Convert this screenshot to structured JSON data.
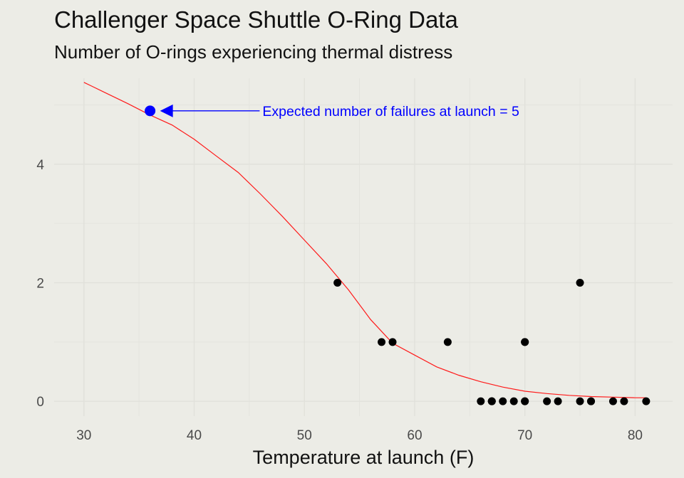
{
  "chart_data": {
    "type": "scatter",
    "title": "Challenger Space Shuttle O-Ring Data",
    "subtitle": "Number of O-rings experiencing thermal distress",
    "xlabel": "Temperature at launch (F)",
    "ylabel": "",
    "xlim": [
      27.3,
      83.4
    ],
    "ylim": [
      -0.25,
      5.45
    ],
    "x_ticks": [
      "30",
      "40",
      "50",
      "60",
      "70",
      "80"
    ],
    "y_ticks": [
      "0",
      "2",
      "4"
    ],
    "grid": true,
    "series": [
      {
        "type": "scatter",
        "x": [
          53,
          57,
          58,
          63,
          66,
          67,
          67,
          67,
          68,
          69,
          70,
          70,
          70,
          70,
          72,
          73,
          75,
          75,
          76,
          76,
          78,
          79,
          81
        ],
        "y": [
          2,
          1,
          1,
          1,
          0,
          0,
          0,
          0,
          0,
          0,
          1,
          0,
          1,
          0,
          0,
          0,
          0,
          2,
          0,
          0,
          0,
          0,
          0
        ],
        "color": "#000000"
      },
      {
        "type": "line",
        "x": [
          30,
          32,
          34,
          36,
          38,
          40,
          42,
          44,
          46,
          48,
          50,
          52,
          54,
          56,
          58,
          60,
          62,
          64,
          66,
          68,
          70,
          72,
          74,
          76,
          78,
          80,
          81
        ],
        "y": [
          5.38,
          5.2,
          5.02,
          4.83,
          4.66,
          4.42,
          4.14,
          3.86,
          3.5,
          3.12,
          2.72,
          2.32,
          1.88,
          1.38,
          0.98,
          0.78,
          0.58,
          0.44,
          0.33,
          0.24,
          0.17,
          0.13,
          0.1,
          0.08,
          0.07,
          0.06,
          0.06
        ],
        "color": "#ff1a1a"
      }
    ],
    "annotations": [
      {
        "text": "Expected number of failures at launch =  5",
        "point": [
          36,
          4.9
        ],
        "text_at": [
          46.2,
          4.9
        ],
        "color": "#0000ff"
      }
    ]
  }
}
